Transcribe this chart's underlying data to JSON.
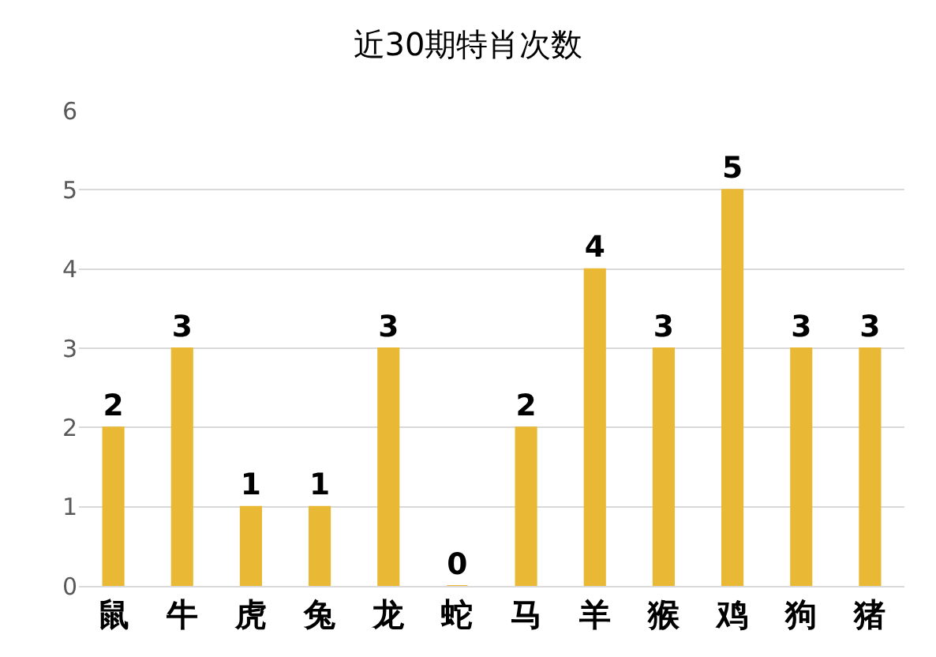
{
  "chart_data": {
    "type": "bar",
    "title": "近30期特肖次数",
    "categories": [
      "鼠",
      "牛",
      "虎",
      "兔",
      "龙",
      "蛇",
      "马",
      "羊",
      "猴",
      "鸡",
      "狗",
      "猪"
    ],
    "values": [
      2,
      3,
      1,
      1,
      3,
      0,
      2,
      4,
      3,
      5,
      3,
      3
    ],
    "color": "#e9b935",
    "ylim": [
      0,
      6
    ],
    "yticks": [
      0,
      1,
      2,
      3,
      4,
      5,
      6
    ],
    "grid": "y",
    "data_labels": true
  }
}
